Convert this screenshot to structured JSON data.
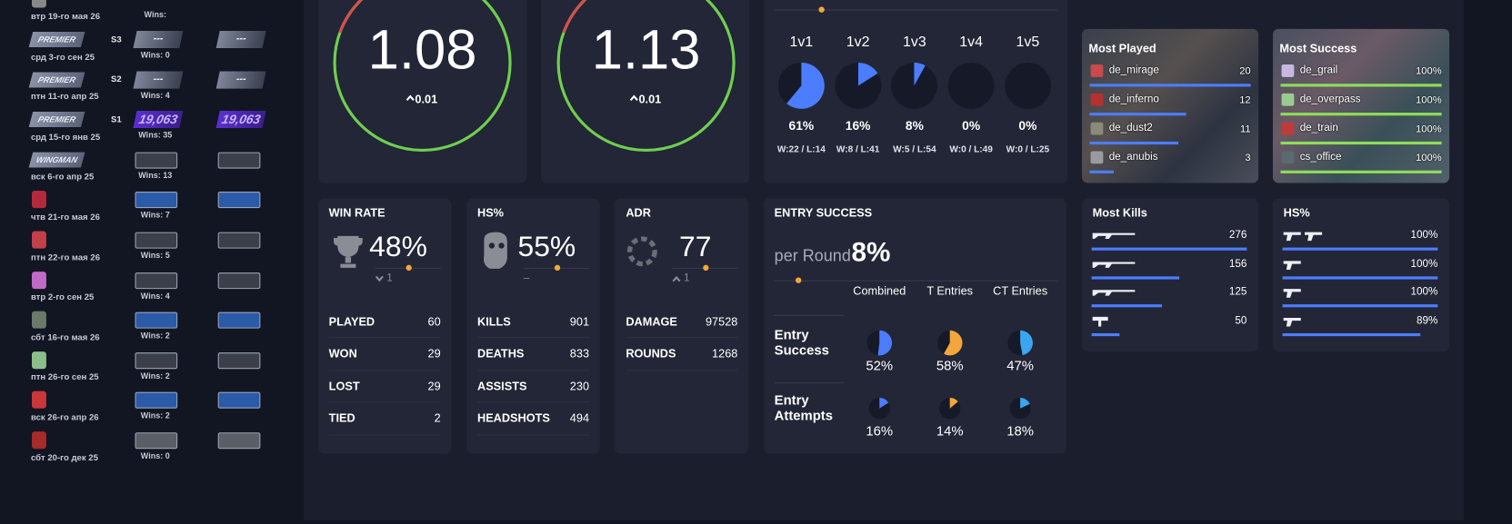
{
  "seasons": [
    {
      "date": "втр 19-го мая 26",
      "wins": "Wins:"
    },
    {
      "badge": "PREMIER",
      "season": "S3",
      "ranks": [
        "---",
        "---"
      ],
      "wins": "Wins: 0",
      "date": "срд 3-го сен 25"
    },
    {
      "badge": "PREMIER",
      "season": "S2",
      "ranks": [
        "---",
        "---"
      ],
      "wins": "Wins: 4",
      "date": "птн 11-го апр 25"
    },
    {
      "badge": "PREMIER",
      "season": "S1",
      "ranks": [
        "19,063",
        "19,063"
      ],
      "wins": "Wins: 35",
      "date": "срд 15-го янв 25"
    },
    {
      "badge": "WINGMAN",
      "wins": "Wins: 13",
      "date": "вск 6-го апр 25"
    },
    {
      "wins": "Wins: 7",
      "date": "чтв 21-го мая 26"
    },
    {
      "wins": "Wins: 5",
      "date": "птн 22-го мая 26"
    },
    {
      "wins": "Wins: 4",
      "date": "втр 2-го сен 25"
    },
    {
      "wins": "Wins: 2",
      "date": "сбт 16-го мая 26"
    },
    {
      "wins": "Wins: 2",
      "date": "птн 26-го сен 25"
    },
    {
      "wins": "Wins: 2",
      "date": "вск 26-го апр 26"
    },
    {
      "wins": "Wins: 0",
      "date": "сбт 20-го дек 25"
    }
  ],
  "ratings": [
    {
      "value": 1.08,
      "change": 0.01
    },
    {
      "value": 1.13,
      "change": 0.01
    }
  ],
  "clutches": {
    "labels": [
      "1v1",
      "1v2",
      "1v3",
      "1v4",
      "1v5"
    ],
    "values": [
      61,
      16,
      8,
      0,
      0
    ],
    "value_labels": [
      "61%",
      "16%",
      "8%",
      "0%",
      "0%"
    ],
    "records": [
      "W:22 / L:14",
      "W:8 / L:41",
      "W:5 / L:54",
      "W:0 / L:49",
      "W:0 / L:25"
    ]
  },
  "most_played": {
    "title": "Most Played",
    "maps": [
      "de_mirage",
      "de_inferno",
      "de_dust2",
      "de_anubis"
    ],
    "values": [
      20,
      12,
      11,
      3
    ]
  },
  "most_success": {
    "title": "Most Success",
    "maps": [
      "de_grail",
      "de_overpass",
      "de_train",
      "cs_office"
    ],
    "values": [
      100,
      100,
      100,
      100
    ],
    "value_labels": [
      "100%",
      "100%",
      "100%",
      "100%"
    ]
  },
  "stat_cards": [
    {
      "title": "WIN RATE",
      "value": "48%",
      "change": "1",
      "rows": [
        [
          "PLAYED",
          60
        ],
        [
          "WON",
          29
        ],
        [
          "LOST",
          29
        ],
        [
          "TIED",
          2
        ]
      ]
    },
    {
      "title": "HS%",
      "value": "55%",
      "change": "–",
      "rows": [
        [
          "KILLS",
          901
        ],
        [
          "DEATHS",
          833
        ],
        [
          "ASSISTS",
          230
        ],
        [
          "HEADSHOTS",
          494
        ]
      ]
    },
    {
      "title": "ADR",
      "value": 77,
      "change": "1",
      "rows": [
        [
          "DAMAGE",
          97528
        ],
        [
          "ROUNDS",
          1268
        ]
      ]
    }
  ],
  "entry": {
    "title": "ENTRY SUCCESS",
    "per_round_label": "per Round",
    "per_round": "8%",
    "columns": [
      "Combined",
      "T Entries",
      "CT Entries"
    ],
    "rows": [
      {
        "label": "Entry Success",
        "values": [
          52,
          58,
          47
        ],
        "value_labels": [
          "52%",
          "58%",
          "47%"
        ]
      },
      {
        "label": "Entry Attempts",
        "values": [
          16,
          14,
          18
        ],
        "value_labels": [
          "16%",
          "14%",
          "18%"
        ]
      }
    ]
  },
  "most_kills": {
    "title": "Most Kills",
    "values": [
      276,
      156,
      125,
      50
    ]
  },
  "hs_weapons": {
    "title": "HS%",
    "values": [
      100,
      100,
      100,
      89
    ],
    "value_labels": [
      "100%",
      "100%",
      "100%",
      "89%"
    ]
  }
}
